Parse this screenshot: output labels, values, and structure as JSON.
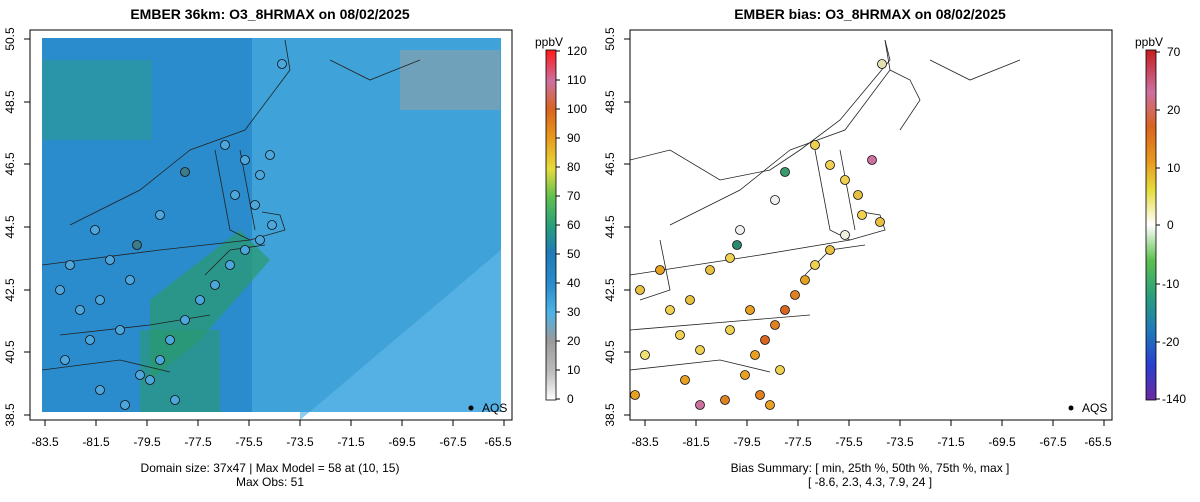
{
  "panels": [
    {
      "title": "EMBER 36km: O3_8HRMAX on 08/02/2025",
      "caption_line1": "Domain size: 37x47 | Max Model = 58 at (10, 15)",
      "caption_line2": "Max Obs: 51",
      "legend_label": "AQS",
      "colorbar": {
        "unit": "ppbV",
        "ticks": [
          "0",
          "10",
          "20",
          "30",
          "40",
          "50",
          "60",
          "70",
          "80",
          "90",
          "100",
          "110",
          "120"
        ],
        "colors": [
          "#ffffff",
          "#bdbdbd",
          "#9a9a9a",
          "#4db3e6",
          "#2a8ccc",
          "#1f7ab8",
          "#2aa07a",
          "#5fc04f",
          "#e6dc3c",
          "#e89a1e",
          "#d9641e",
          "#cc70a0",
          "#ff1a1a"
        ]
      }
    },
    {
      "title": "EMBER bias: O3_8HRMAX on 08/02/2025",
      "caption_line1": "Bias Summary: [ min, 25th %, 50th %, 75th %, max ]",
      "caption_line2": "[ -8.6,   2.3,   4.3,   7.9,   24 ]",
      "legend_label": "AQS",
      "colorbar": {
        "unit": "ppbV",
        "ticks": [
          "70",
          "20",
          "10",
          "0",
          "-10",
          "-20",
          "-140"
        ],
        "colors": [
          "#c41e1e",
          "#cc70a0",
          "#d9641e",
          "#e89a1e",
          "#e6dc3c",
          "#ffffff",
          "#5fc04f",
          "#2aa07a",
          "#1f7ab8",
          "#2a3fd0",
          "#6a2aa0"
        ]
      }
    }
  ],
  "map": {
    "x_ticks": [
      "-83.5",
      "-81.5",
      "-79.5",
      "-77.5",
      "-75.5",
      "-73.5",
      "-71.5",
      "-69.5",
      "-67.5",
      "-65.5"
    ],
    "y_ticks": [
      "38.5",
      "40.5",
      "42.5",
      "44.5",
      "46.5",
      "48.5",
      "50.5"
    ]
  },
  "colors": {
    "model_ocean": "#3fa2d8",
    "model_land": "#2a8ccc",
    "model_high": "#2a9a7c",
    "obs_fill": "#4da6dc",
    "bias_high": "#e8a020",
    "bias_mid": "#f0d050"
  }
}
